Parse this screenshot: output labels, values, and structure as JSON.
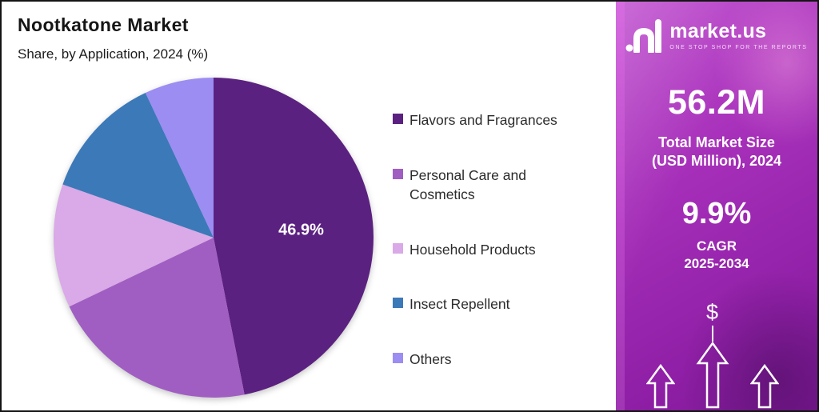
{
  "chart": {
    "title": "Nootkatone Market",
    "subtitle": "Share, by Application, 2024 (%)"
  },
  "chart_data": {
    "type": "pie",
    "title": "Nootkatone Market Share, by Application, 2024 (%)",
    "labels": [
      "Flavors and Fragrances",
      "Personal Care and Cosmetics",
      "Household Products",
      "Insect Repellent",
      "Others"
    ],
    "values": [
      46.9,
      21.0,
      12.5,
      12.6,
      7.0
    ],
    "colors": [
      "#5b2180",
      "#a05ec2",
      "#d9a9e8",
      "#3c79b8",
      "#9b8df2"
    ],
    "start_angle_deg": 0,
    "direction": "clockwise",
    "labeled_slice": {
      "index": 0,
      "text": "46.9%"
    },
    "legend_position": "right",
    "grid": false
  },
  "panel": {
    "brand": "market.us",
    "tagline": "ONE STOP SHOP FOR THE REPORTS",
    "market_size_value": "56.2M",
    "market_size_line1": "Total Market Size",
    "market_size_line2": "(USD Million), 2024",
    "cagr_value": "9.9%",
    "cagr_line1": "CAGR",
    "cagr_line2": "2025-2034",
    "dollar_symbol": "$",
    "colors": {
      "panel_top": "#c050cf",
      "panel_bottom": "#7c1894",
      "text": "#ffffff"
    }
  }
}
